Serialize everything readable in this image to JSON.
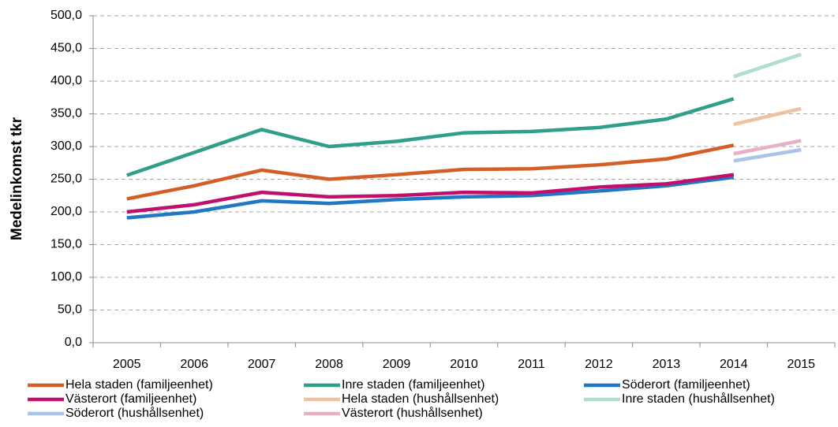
{
  "chart_data": {
    "type": "line",
    "y_label": "Medelinkomst tkr",
    "categories": [
      "2005",
      "2006",
      "2007",
      "2008",
      "2009",
      "2010",
      "2011",
      "2012",
      "2013",
      "2014",
      "2015"
    ],
    "ylim": [
      0,
      500
    ],
    "yticks": [
      {
        "value": 0,
        "label": "0,0"
      },
      {
        "value": 50,
        "label": "50,0"
      },
      {
        "value": 100,
        "label": "100,0"
      },
      {
        "value": 150,
        "label": "150,0"
      },
      {
        "value": 200,
        "label": "200,0"
      },
      {
        "value": 250,
        "label": "250,0"
      },
      {
        "value": 300,
        "label": "300,0"
      },
      {
        "value": 350,
        "label": "350,0"
      },
      {
        "value": 400,
        "label": "400,0"
      },
      {
        "value": 450,
        "label": "450,0"
      },
      {
        "value": 500,
        "label": "500,0"
      }
    ],
    "grid": true,
    "legend": "bottom",
    "series": [
      {
        "name": "Hela staden (familjeenhet)",
        "color": "#d35f27",
        "values": [
          220,
          240,
          264,
          250,
          257,
          265,
          266,
          272,
          281,
          302,
          null
        ]
      },
      {
        "name": "Inre staden (familjeenhet)",
        "color": "#2f9e8b",
        "values": [
          256,
          291,
          326,
          300,
          308,
          321,
          323,
          329,
          342,
          373,
          null
        ]
      },
      {
        "name": "Söderort (familjeenhet)",
        "color": "#1f78c1",
        "values": [
          191,
          200,
          217,
          213,
          219,
          223,
          225,
          232,
          240,
          253,
          null
        ]
      },
      {
        "name": "Västerort (familjeenhet)",
        "color": "#c0106b",
        "values": [
          200,
          211,
          230,
          223,
          225,
          230,
          229,
          238,
          243,
          257,
          null
        ]
      },
      {
        "name": "Hela staden (hushållsenhet)",
        "color": "#eec1a0",
        "values": [
          null,
          null,
          null,
          null,
          null,
          null,
          null,
          null,
          null,
          334,
          358
        ]
      },
      {
        "name": "Inre staden (hushållsenhet)",
        "color": "#b3dcd3",
        "values": [
          null,
          null,
          null,
          null,
          null,
          null,
          null,
          null,
          null,
          407,
          441
        ]
      },
      {
        "name": "Söderort (hushållsenhet)",
        "color": "#a9c4e8",
        "values": [
          null,
          null,
          null,
          null,
          null,
          null,
          null,
          null,
          null,
          278,
          295
        ]
      },
      {
        "name": "Västerort (hushållsenhet)",
        "color": "#e8b0c7",
        "values": [
          null,
          null,
          null,
          null,
          null,
          null,
          null,
          null,
          null,
          289,
          309
        ]
      }
    ]
  }
}
